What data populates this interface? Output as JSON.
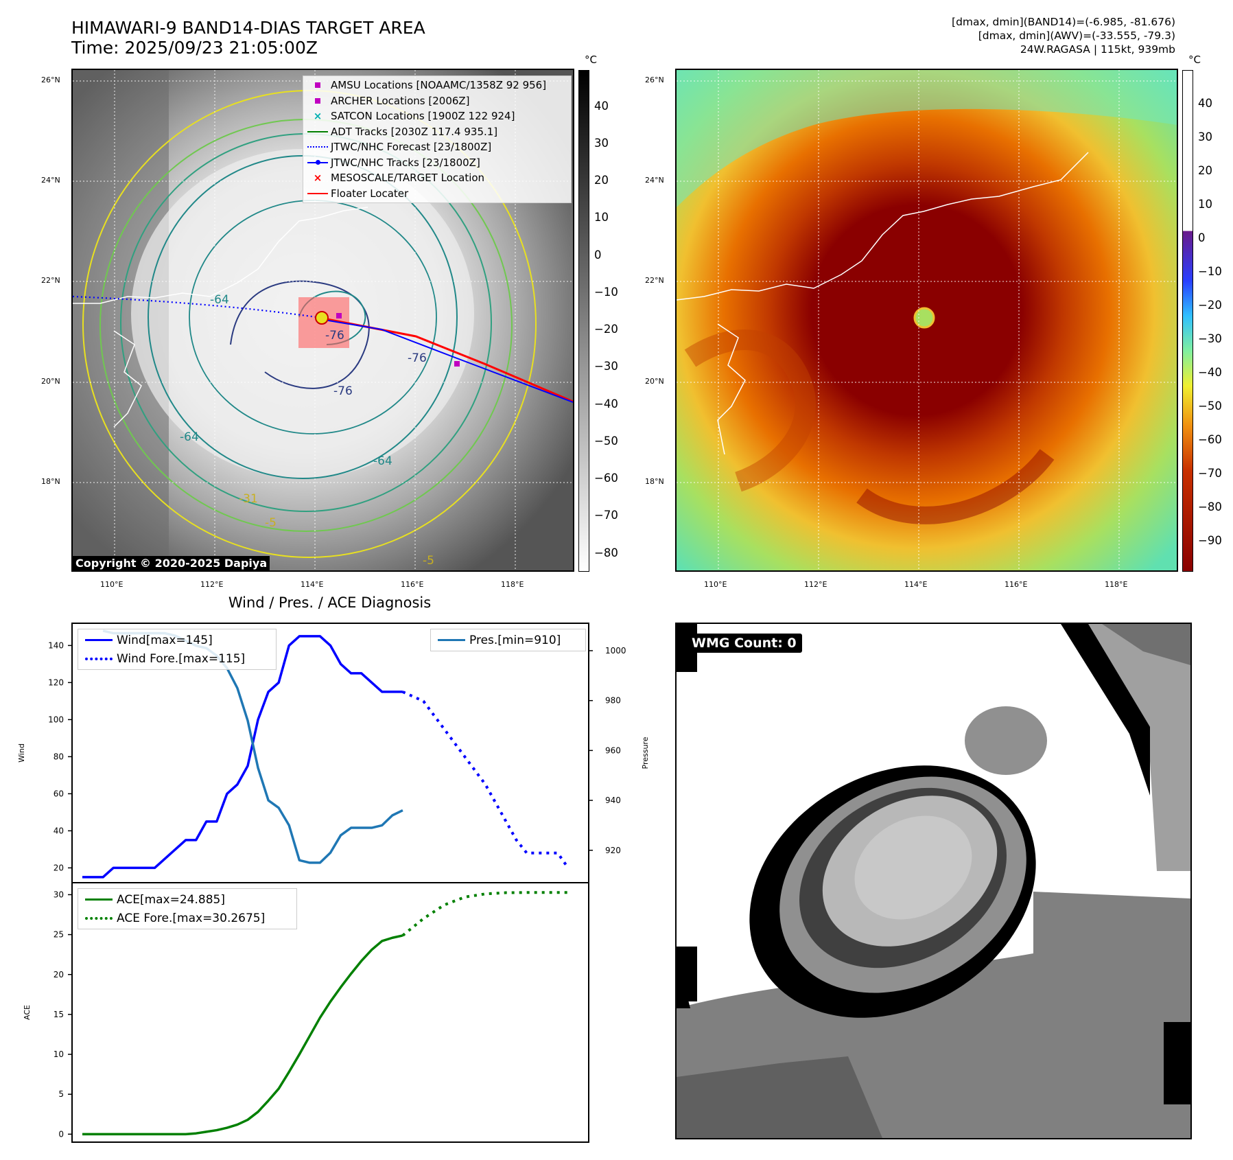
{
  "header": {
    "title_line1": "HIMAWARI-9 BAND14-DIAS TARGET AREA",
    "title_line2": "Time: 2025/09/23 21:05:00Z",
    "info_line1": "[dmax, dmin](BAND14)=(-6.985, -81.676)",
    "info_line2": "[dmax, dmin](AWV)=(-33.555, -79.3)",
    "info_line3": "24W.RAGASA | 115kt, 939mb"
  },
  "map_axes": {
    "lat_labels": [
      "26°N",
      "24°N",
      "22°N",
      "20°N",
      "18°N"
    ],
    "lon_labels": [
      "110°E",
      "112°E",
      "114°E",
      "116°E",
      "118°E"
    ]
  },
  "left_map": {
    "copyright": "Copyright © 2020-2025 Dapiya",
    "contour_labels": [
      "-64",
      "-76",
      "-76",
      "-76",
      "-64",
      "-64",
      "-31",
      "-5",
      "-5"
    ],
    "legend": [
      {
        "label": "AMSU Locations [NOAAMC/1358Z 92 956]",
        "symbol": "square",
        "color": "#c000c0"
      },
      {
        "label": "ARCHER Locations [2006Z]",
        "symbol": "square",
        "color": "#c000c0"
      },
      {
        "label": "SATCON Locations [1900Z 122 924]",
        "symbol": "x",
        "color": "#00b0b0"
      },
      {
        "label": "ADT Tracks [2030Z 117.4 935.1]",
        "symbol": "line",
        "color": "#008000"
      },
      {
        "label": "JTWC/NHC Forecast [23/1800Z]",
        "symbol": "dotted",
        "color": "#0000ff"
      },
      {
        "label": "JTWC/NHC Tracks [23/1800Z]",
        "symbol": "line-dot",
        "color": "#0000ff"
      },
      {
        "label": "MESOSCALE/TARGET Location",
        "symbol": "x",
        "color": "#ff0000"
      },
      {
        "label": "Floater Locater",
        "symbol": "line",
        "color": "#ff0000"
      }
    ]
  },
  "colorbar_left": {
    "unit": "°C",
    "ticks": [
      "40",
      "30",
      "20",
      "10",
      "0",
      "−10",
      "−20",
      "−30",
      "−40",
      "−50",
      "−60",
      "−70",
      "−80"
    ]
  },
  "colorbar_right": {
    "unit": "°C",
    "ticks": [
      "40",
      "30",
      "20",
      "10",
      "0",
      "−10",
      "−20",
      "−30",
      "−40",
      "−50",
      "−60",
      "−70",
      "−80",
      "−90"
    ]
  },
  "diag_title": "Wind / Pres. / ACE Diagnosis",
  "wmg": {
    "label": "WMG Count: 0"
  },
  "chart_data": [
    {
      "type": "line",
      "title": "Wind / Pres. / ACE Diagnosis",
      "ylabel": "Wind",
      "y2label": "Pressure",
      "ylim": [
        12,
        152
      ],
      "y2lim": [
        907,
        1011
      ],
      "yticks": [
        "20",
        "40",
        "60",
        "80",
        "100",
        "120",
        "140"
      ],
      "y2ticks": [
        "920",
        "940",
        "960",
        "980",
        "1000"
      ],
      "series": [
        {
          "name": "Wind[max=145]",
          "axis": "left",
          "style": "solid",
          "color": "#0000ff",
          "x": [
            0,
            1,
            2,
            3,
            4,
            5,
            6,
            7,
            8,
            9,
            10,
            11,
            12,
            13,
            14,
            15,
            16,
            17,
            18,
            19,
            20,
            21,
            22,
            23,
            24,
            25,
            26,
            27,
            28,
            29,
            30,
            31
          ],
          "values": [
            15,
            15,
            15,
            20,
            20,
            20,
            20,
            20,
            25,
            30,
            35,
            35,
            45,
            45,
            60,
            65,
            75,
            100,
            115,
            120,
            140,
            145,
            145,
            145,
            140,
            130,
            125,
            125,
            120,
            115,
            115,
            115
          ]
        },
        {
          "name": "Wind Fore.[max=115]",
          "axis": "left",
          "style": "dotted",
          "color": "#0000ff",
          "x": [
            31,
            33,
            35,
            37,
            39,
            40.5,
            42,
            43,
            44,
            46,
            47
          ],
          "values": [
            115,
            110,
            95,
            80,
            65,
            50,
            35,
            28,
            28,
            28,
            20
          ]
        },
        {
          "name": "Pres.[min=910]",
          "axis": "right",
          "style": "solid",
          "color": "#1f77b4",
          "x": [
            2,
            3,
            4,
            5,
            6,
            7,
            8,
            9,
            10,
            11,
            12,
            13,
            14,
            15,
            16,
            17,
            18,
            19,
            20,
            21,
            22,
            23,
            24,
            25,
            26,
            27,
            28,
            29,
            30,
            31
          ],
          "values": [
            1008,
            1007,
            1007,
            1007,
            1007,
            1007,
            1007,
            1006,
            1004,
            1002,
            1001,
            998,
            993,
            985,
            972,
            953,
            940,
            937,
            930,
            916,
            915,
            915,
            919,
            926,
            929,
            929,
            929,
            930,
            934,
            936
          ]
        }
      ],
      "legend_left": [
        "Wind[max=145]",
        "Wind Fore.[max=115]"
      ],
      "legend_right": [
        "Pres.[min=910]"
      ]
    },
    {
      "type": "line",
      "ylabel": "ACE",
      "ylim": [
        -1,
        31.5
      ],
      "yticks": [
        "0",
        "5",
        "10",
        "15",
        "20",
        "25",
        "30"
      ],
      "series": [
        {
          "name": "ACE[max=24.885]",
          "style": "solid",
          "color": "#008000",
          "x": [
            0,
            2,
            4,
            6,
            8,
            10,
            11,
            12,
            13,
            14,
            15,
            16,
            17,
            18,
            19,
            20,
            21,
            22,
            23,
            24,
            25,
            26,
            27,
            28,
            29,
            30,
            31
          ],
          "values": [
            0,
            0,
            0,
            0,
            0,
            0,
            0.1,
            0.3,
            0.5,
            0.8,
            1.2,
            1.8,
            2.8,
            4.2,
            5.7,
            7.8,
            10,
            12.3,
            14.6,
            16.6,
            18.4,
            20.1,
            21.7,
            23.1,
            24.2,
            24.6,
            24.885
          ]
        },
        {
          "name": "ACE Fore.[max=30.2675]",
          "style": "dotted",
          "color": "#008000",
          "x": [
            31,
            33,
            35,
            37,
            39,
            41,
            43,
            45,
            47
          ],
          "values": [
            24.885,
            27,
            28.7,
            29.7,
            30.1,
            30.25,
            30.27,
            30.27,
            30.27
          ]
        }
      ],
      "legend": [
        "ACE[max=24.885]",
        "ACE Fore.[max=30.2675]"
      ]
    }
  ]
}
